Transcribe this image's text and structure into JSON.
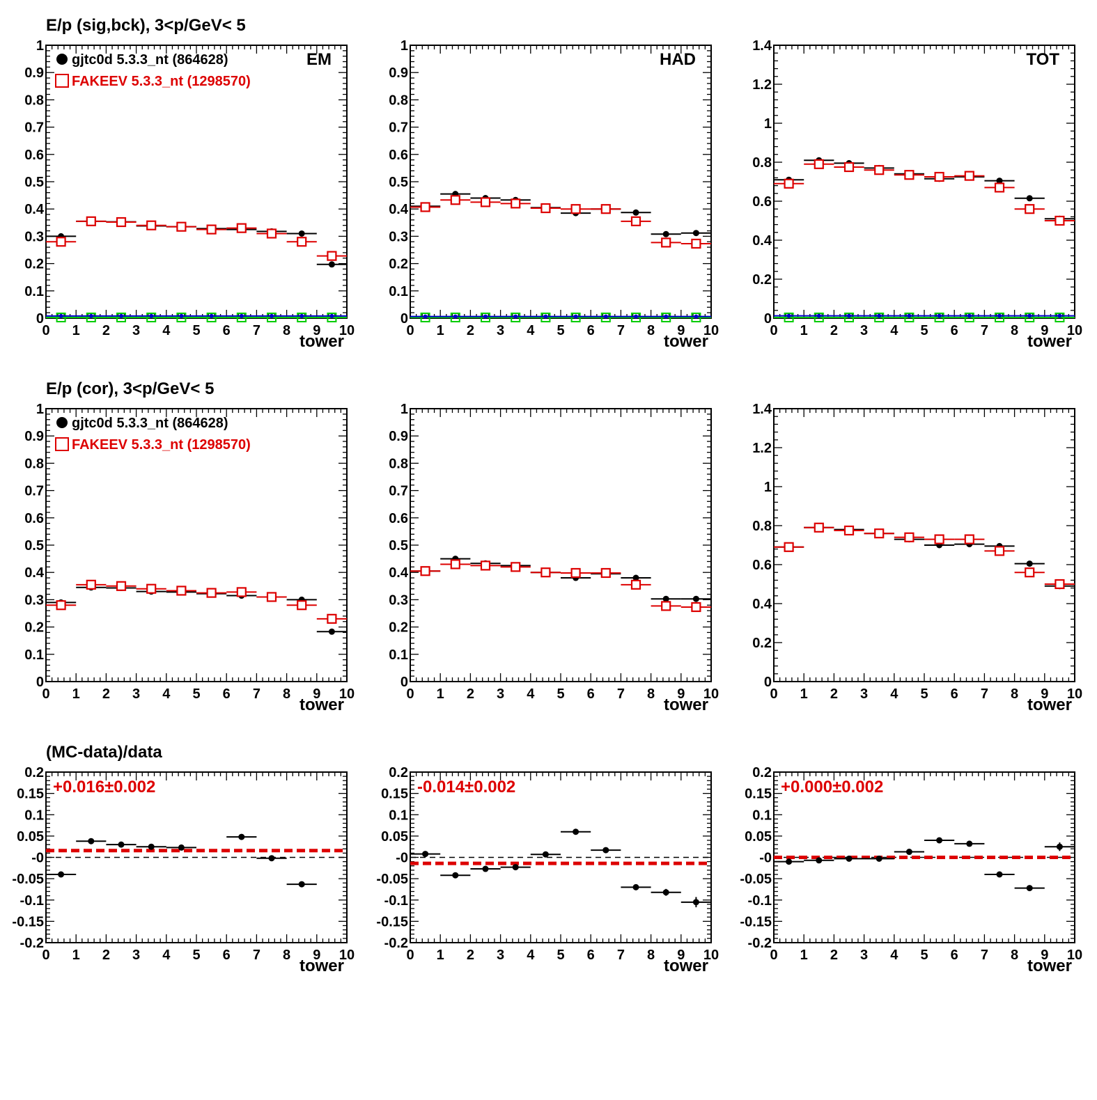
{
  "row_titles": [
    "E/p (sig,bck),  3<p/GeV< 5",
    "E/p (cor),  3<p/GeV< 5",
    "(MC-data)/data"
  ],
  "legend": {
    "data_label": "gjtc0d 5.3.3_nt (864628)",
    "mc_label": "FAKEEV 5.3.3_nt (1298570)"
  },
  "colors": {
    "data": "#000000",
    "mc": "#dd0000",
    "bkg_green": "#00cc00",
    "bkg_blue": "#0000cc"
  },
  "chart_data": [
    {
      "type": "scatter",
      "row": 0,
      "col": 0,
      "label": "EM",
      "legend": true,
      "xlabel": "tower",
      "xlim": [
        0,
        10
      ],
      "ylim": [
        0,
        1
      ],
      "xticks": [
        "0",
        "1",
        "2",
        "3",
        "4",
        "5",
        "6",
        "7",
        "8",
        "9",
        "10"
      ],
      "yticks": [
        "0",
        "0.1",
        "0.2",
        "0.3",
        "0.4",
        "0.5",
        "0.6",
        "0.7",
        "0.8",
        "0.9",
        "1"
      ],
      "x": [
        0.5,
        1.5,
        2.5,
        3.5,
        4.5,
        5.5,
        6.5,
        7.5,
        8.5,
        9.5
      ],
      "series": [
        {
          "name": "gjtc0d 5.3.3_nt (864628)",
          "style": "data",
          "values": [
            0.3,
            0.355,
            0.353,
            0.338,
            0.335,
            0.328,
            0.325,
            0.318,
            0.31,
            0.197
          ]
        },
        {
          "name": "FAKEEV 5.3.3_nt (1298570)",
          "style": "mc",
          "values": [
            0.28,
            0.355,
            0.352,
            0.34,
            0.335,
            0.325,
            0.33,
            0.31,
            0.28,
            0.228
          ]
        },
        {
          "style": "bkg_green",
          "values": [
            0,
            0,
            0,
            0,
            0,
            0,
            0,
            0,
            0,
            0
          ]
        },
        {
          "style": "bkg_blue",
          "values": [
            0.008,
            0.008,
            0.008,
            0.008,
            0.008,
            0.008,
            0.008,
            0.008,
            0.008,
            0.008
          ]
        }
      ]
    },
    {
      "type": "scatter",
      "row": 0,
      "col": 1,
      "label": "HAD",
      "xlabel": "tower",
      "xlim": [
        0,
        10
      ],
      "ylim": [
        0,
        1
      ],
      "xticks": [
        "0",
        "1",
        "2",
        "3",
        "4",
        "5",
        "6",
        "7",
        "8",
        "9",
        "10"
      ],
      "yticks": [
        "0",
        "0.1",
        "0.2",
        "0.3",
        "0.4",
        "0.5",
        "0.6",
        "0.7",
        "0.8",
        "0.9",
        "1"
      ],
      "x": [
        0.5,
        1.5,
        2.5,
        3.5,
        4.5,
        5.5,
        6.5,
        7.5,
        8.5,
        9.5
      ],
      "series": [
        {
          "style": "data",
          "values": [
            0.41,
            0.455,
            0.44,
            0.433,
            0.405,
            0.385,
            0.4,
            0.387,
            0.308,
            0.312
          ]
        },
        {
          "style": "mc",
          "values": [
            0.407,
            0.433,
            0.425,
            0.42,
            0.403,
            0.4,
            0.4,
            0.355,
            0.277,
            0.273
          ]
        },
        {
          "style": "bkg_green",
          "values": [
            0,
            0,
            0,
            0,
            0,
            0,
            0,
            0,
            0,
            0
          ]
        },
        {
          "style": "bkg_blue",
          "values": [
            0.006,
            0.006,
            0.006,
            0.006,
            0.006,
            0.006,
            0.006,
            0.006,
            0.006,
            0.006
          ]
        }
      ]
    },
    {
      "type": "scatter",
      "row": 0,
      "col": 2,
      "label": "TOT",
      "xlabel": "tower",
      "xlim": [
        0,
        10
      ],
      "ylim": [
        0,
        1.4
      ],
      "xticks": [
        "0",
        "1",
        "2",
        "3",
        "4",
        "5",
        "6",
        "7",
        "8",
        "9",
        "10"
      ],
      "yticks": [
        "0",
        "0.2",
        "0.4",
        "0.6",
        "0.8",
        "1",
        "1.2",
        "1.4"
      ],
      "x": [
        0.5,
        1.5,
        2.5,
        3.5,
        4.5,
        5.5,
        6.5,
        7.5,
        8.5,
        9.5
      ],
      "series": [
        {
          "style": "data",
          "values": [
            0.71,
            0.81,
            0.795,
            0.77,
            0.74,
            0.715,
            0.725,
            0.705,
            0.615,
            0.51
          ]
        },
        {
          "style": "mc",
          "values": [
            0.69,
            0.79,
            0.775,
            0.76,
            0.735,
            0.725,
            0.73,
            0.67,
            0.56,
            0.5
          ]
        },
        {
          "style": "bkg_green",
          "values": [
            0,
            0,
            0,
            0,
            0,
            0,
            0,
            0,
            0,
            0
          ]
        },
        {
          "style": "bkg_blue",
          "values": [
            0.012,
            0.012,
            0.012,
            0.012,
            0.012,
            0.012,
            0.012,
            0.012,
            0.012,
            0.012
          ]
        }
      ]
    },
    {
      "type": "scatter",
      "row": 1,
      "col": 0,
      "legend": true,
      "xlabel": "tower",
      "xlim": [
        0,
        10
      ],
      "ylim": [
        0,
        1
      ],
      "xticks": [
        "0",
        "1",
        "2",
        "3",
        "4",
        "5",
        "6",
        "7",
        "8",
        "9",
        "10"
      ],
      "yticks": [
        "0",
        "0.1",
        "0.2",
        "0.3",
        "0.4",
        "0.5",
        "0.6",
        "0.7",
        "0.8",
        "0.9",
        "1"
      ],
      "x": [
        0.5,
        1.5,
        2.5,
        3.5,
        4.5,
        5.5,
        6.5,
        7.5,
        8.5,
        9.5
      ],
      "series": [
        {
          "name": "gjtc0d 5.3.3_nt (864628)",
          "style": "data",
          "values": [
            0.29,
            0.345,
            0.343,
            0.33,
            0.328,
            0.322,
            0.315,
            0.31,
            0.3,
            0.183
          ]
        },
        {
          "name": "FAKEEV 5.3.3_nt (1298570)",
          "style": "mc",
          "values": [
            0.28,
            0.355,
            0.35,
            0.34,
            0.333,
            0.325,
            0.328,
            0.31,
            0.28,
            0.23
          ]
        }
      ]
    },
    {
      "type": "scatter",
      "row": 1,
      "col": 1,
      "xlabel": "tower",
      "xlim": [
        0,
        10
      ],
      "ylim": [
        0,
        1
      ],
      "xticks": [
        "0",
        "1",
        "2",
        "3",
        "4",
        "5",
        "6",
        "7",
        "8",
        "9",
        "10"
      ],
      "yticks": [
        "0",
        "0.1",
        "0.2",
        "0.3",
        "0.4",
        "0.5",
        "0.6",
        "0.7",
        "0.8",
        "0.9",
        "1"
      ],
      "x": [
        0.5,
        1.5,
        2.5,
        3.5,
        4.5,
        5.5,
        6.5,
        7.5,
        8.5,
        9.5
      ],
      "series": [
        {
          "style": "data",
          "values": [
            0.405,
            0.45,
            0.433,
            0.425,
            0.4,
            0.38,
            0.395,
            0.38,
            0.303,
            0.303
          ]
        },
        {
          "style": "mc",
          "values": [
            0.405,
            0.43,
            0.425,
            0.42,
            0.4,
            0.398,
            0.398,
            0.355,
            0.277,
            0.273
          ]
        }
      ]
    },
    {
      "type": "scatter",
      "row": 1,
      "col": 2,
      "xlabel": "tower",
      "xlim": [
        0,
        10
      ],
      "ylim": [
        0,
        1.4
      ],
      "xticks": [
        "0",
        "1",
        "2",
        "3",
        "4",
        "5",
        "6",
        "7",
        "8",
        "9",
        "10"
      ],
      "yticks": [
        "0",
        "0.2",
        "0.4",
        "0.6",
        "0.8",
        "1",
        "1.2",
        "1.4"
      ],
      "x": [
        0.5,
        1.5,
        2.5,
        3.5,
        4.5,
        5.5,
        6.5,
        7.5,
        8.5,
        9.5
      ],
      "series": [
        {
          "style": "data",
          "values": [
            0.69,
            0.79,
            0.78,
            0.76,
            0.73,
            0.7,
            0.705,
            0.695,
            0.605,
            0.49
          ]
        },
        {
          "style": "mc",
          "values": [
            0.69,
            0.79,
            0.775,
            0.76,
            0.74,
            0.73,
            0.73,
            0.67,
            0.56,
            0.5
          ]
        }
      ]
    },
    {
      "type": "scatter",
      "row": 2,
      "col": 0,
      "fit_label": "+0.016±0.002",
      "fit_value": 0.016,
      "xlabel": "tower",
      "xlim": [
        0,
        10
      ],
      "ylim": [
        -0.2,
        0.2
      ],
      "xticks": [
        "0",
        "1",
        "2",
        "3",
        "4",
        "5",
        "6",
        "7",
        "8",
        "9",
        "10"
      ],
      "yticks": [
        "-0.2",
        "-0.15",
        "-0.1",
        "-0.05",
        "-0",
        "0.05",
        "0.1",
        "0.15",
        "0.2"
      ],
      "x": [
        0.5,
        1.5,
        2.5,
        3.5,
        4.5,
        6.5,
        7.5,
        8.5
      ],
      "series": [
        {
          "style": "data",
          "values": [
            -0.04,
            0.038,
            0.03,
            0.025,
            0.023,
            0.048,
            -0.002,
            -0.063
          ],
          "errors": [
            0.003,
            0.003,
            0.003,
            0.003,
            0.003,
            0.003,
            0.003,
            0.005
          ]
        }
      ]
    },
    {
      "type": "scatter",
      "row": 2,
      "col": 1,
      "fit_label": "-0.014±0.002",
      "fit_value": -0.014,
      "xlabel": "tower",
      "xlim": [
        0,
        10
      ],
      "ylim": [
        -0.2,
        0.2
      ],
      "xticks": [
        "0",
        "1",
        "2",
        "3",
        "4",
        "5",
        "6",
        "7",
        "8",
        "9",
        "10"
      ],
      "yticks": [
        "-0.2",
        "-0.15",
        "-0.1",
        "-0.05",
        "-0",
        "0.05",
        "0.1",
        "0.15",
        "0.2"
      ],
      "x": [
        0.5,
        1.5,
        2.5,
        3.5,
        4.5,
        5.5,
        6.5,
        7.5,
        8.5,
        9.5
      ],
      "series": [
        {
          "style": "data",
          "values": [
            0.008,
            -0.042,
            -0.027,
            -0.023,
            0.007,
            0.06,
            0.017,
            -0.07,
            -0.082,
            -0.105
          ],
          "errors": [
            0.003,
            0.003,
            0.003,
            0.003,
            0.003,
            0.003,
            0.003,
            0.004,
            0.008,
            0.012
          ]
        }
      ]
    },
    {
      "type": "scatter",
      "row": 2,
      "col": 2,
      "fit_label": "+0.000±0.002",
      "fit_value": 0.0,
      "xlabel": "tower",
      "xlim": [
        0,
        10
      ],
      "ylim": [
        -0.2,
        0.2
      ],
      "xticks": [
        "0",
        "1",
        "2",
        "3",
        "4",
        "5",
        "6",
        "7",
        "8",
        "9",
        "10"
      ],
      "yticks": [
        "-0.2",
        "-0.15",
        "-0.1",
        "-0.05",
        "-0",
        "0.05",
        "0.1",
        "0.15",
        "0.2"
      ],
      "x": [
        0.5,
        1.5,
        2.5,
        3.5,
        4.5,
        5.5,
        6.5,
        7.5,
        8.5,
        9.5
      ],
      "series": [
        {
          "style": "data",
          "values": [
            -0.01,
            -0.007,
            -0.003,
            -0.003,
            0.013,
            0.04,
            0.032,
            -0.04,
            -0.072,
            0.025
          ],
          "errors": [
            0.003,
            0.003,
            0.003,
            0.003,
            0.003,
            0.003,
            0.003,
            0.003,
            0.004,
            0.01
          ]
        }
      ]
    }
  ]
}
